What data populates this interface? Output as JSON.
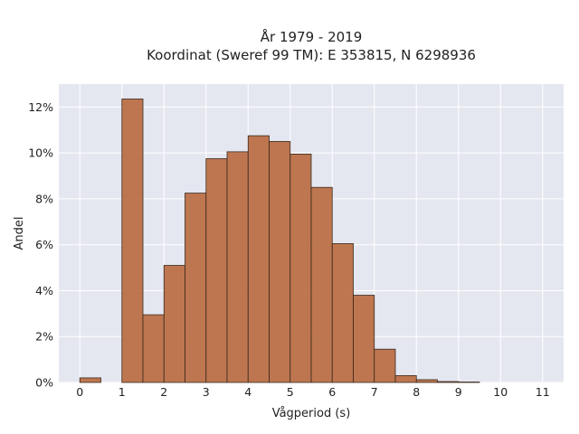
{
  "chart_data": {
    "type": "bar",
    "title": [
      "År 1979 - 2019",
      "Koordinat (Sweref 99 TM): E 353815, N 6298936"
    ],
    "xlabel": "Vågperiod (s)",
    "ylabel": "Andel",
    "xlim": [
      -0.5,
      11.5
    ],
    "ylim": [
      0,
      13
    ],
    "x_ticks": [
      0,
      1,
      2,
      3,
      4,
      5,
      6,
      7,
      8,
      9,
      10,
      11
    ],
    "y_ticks": [
      0,
      2,
      4,
      6,
      8,
      10,
      12
    ],
    "y_tick_labels": [
      "0%",
      "2%",
      "4%",
      "6%",
      "8%",
      "10%",
      "12%"
    ],
    "grid": true,
    "bin_width": 0.5,
    "bars": [
      {
        "start": 0.0,
        "value": 0.2
      },
      {
        "start": 1.0,
        "value": 12.35
      },
      {
        "start": 1.5,
        "value": 2.95
      },
      {
        "start": 2.0,
        "value": 5.1
      },
      {
        "start": 2.5,
        "value": 8.25
      },
      {
        "start": 3.0,
        "value": 9.75
      },
      {
        "start": 3.5,
        "value": 10.05
      },
      {
        "start": 4.0,
        "value": 10.75
      },
      {
        "start": 4.5,
        "value": 10.5
      },
      {
        "start": 5.0,
        "value": 9.95
      },
      {
        "start": 5.5,
        "value": 8.5
      },
      {
        "start": 6.0,
        "value": 6.05
      },
      {
        "start": 6.5,
        "value": 3.8
      },
      {
        "start": 7.0,
        "value": 1.45
      },
      {
        "start": 7.5,
        "value": 0.3
      },
      {
        "start": 8.0,
        "value": 0.12
      },
      {
        "start": 8.5,
        "value": 0.04
      },
      {
        "start": 9.0,
        "value": 0.02
      }
    ],
    "colors": {
      "bar_fill": "#b8693d",
      "bar_edge": "#3a2a1f",
      "plot_bg": "#e5e7f0",
      "grid": "#ffffff"
    }
  }
}
